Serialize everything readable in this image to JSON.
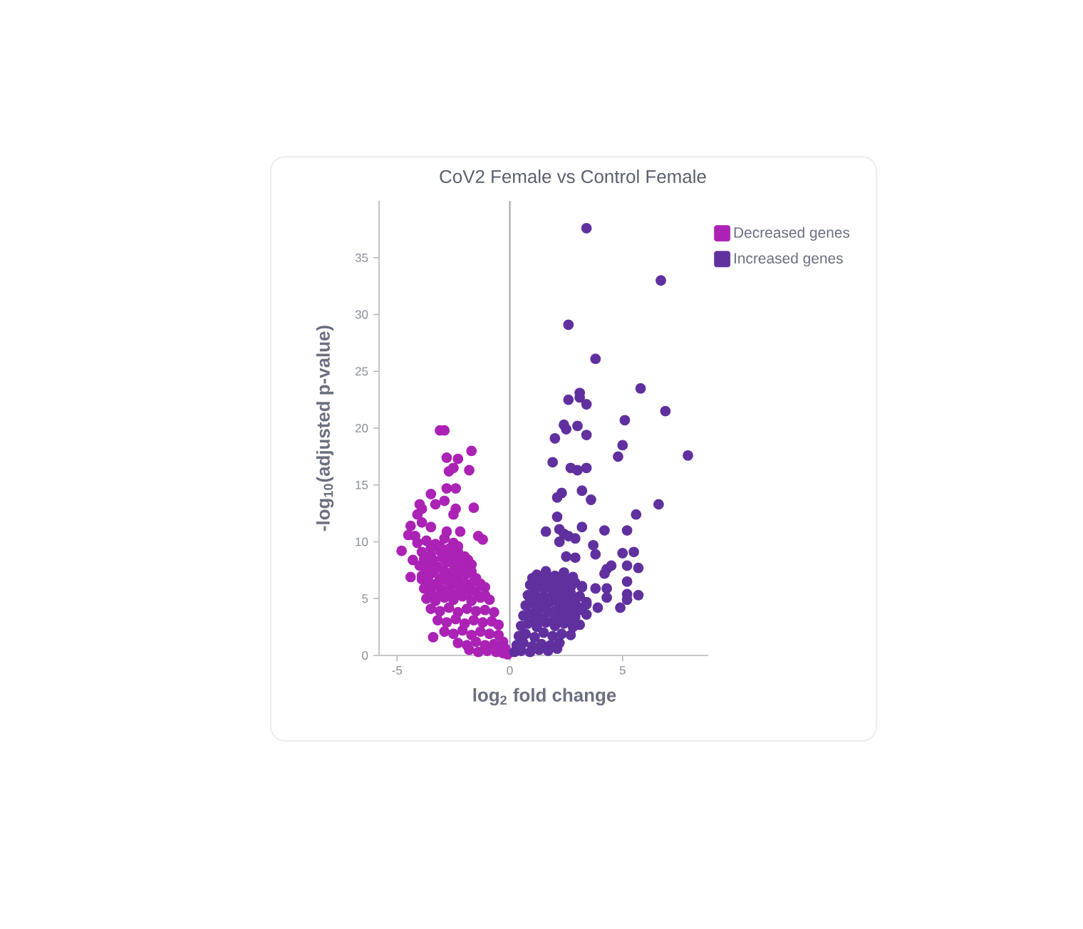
{
  "chart_data": {
    "type": "scatter",
    "title": "CoV2 Female vs Control Female",
    "xlabel": "log$_{2}$ fold change",
    "ylabel": "-log$_{10}$(adjusted p-value)",
    "xlim": [
      -5.8,
      8.8
    ],
    "ylim": [
      0,
      40
    ],
    "xticks": [
      -5,
      0,
      5
    ],
    "yticks": [
      0,
      5,
      10,
      15,
      20,
      25,
      30,
      35
    ],
    "legend": "top right",
    "marker": "circle",
    "ref_lines": [
      {
        "axis": "x",
        "value": 0,
        "color": "#a9acb4"
      }
    ],
    "series": [
      {
        "name": "Decreased genes",
        "color": "#ab22b5",
        "x": [
          -3.1,
          -2.9,
          -1.7,
          -2.8,
          -2.3,
          -2.7,
          -2.5,
          -1.8,
          -2.8,
          -2.4,
          -3.5,
          -2.9,
          -3.3,
          -4.0,
          -3.9,
          -1.6,
          -4.1,
          -2.4,
          -2.5,
          -4.4,
          -3.9,
          -4.5,
          -4.2,
          -3.5,
          -2.8,
          -2.2,
          -1.4,
          -1.2,
          -4.8,
          -4.1,
          -4.3,
          -4.4,
          -3.9,
          -3.4,
          -3.7,
          -3.3,
          -2.9,
          -2.5,
          -3.9,
          -3.5,
          -3.1,
          -2.7,
          -2.3,
          -2.0,
          -4.0,
          -3.6,
          -3.2,
          -2.8,
          -2.4,
          -2.0,
          -1.7,
          -3.9,
          -3.5,
          -3.1,
          -2.7,
          -2.3,
          -1.9,
          -1.5,
          -3.8,
          -3.4,
          -3.0,
          -2.6,
          -2.2,
          -1.8,
          -1.1,
          -3.7,
          -3.3,
          -2.9,
          -2.5,
          -2.1,
          -1.7,
          -1.3,
          -0.9,
          -3.5,
          -3.1,
          -2.7,
          -2.3,
          -1.9,
          -1.5,
          -1.1,
          -0.7,
          -3.2,
          -2.8,
          -2.4,
          -2.0,
          -1.6,
          -1.2,
          -0.8,
          -0.5,
          -2.9,
          -2.5,
          -2.1,
          -1.7,
          -1.3,
          -0.9,
          -0.5,
          -0.3,
          -2.3,
          -1.9,
          -1.5,
          -1.1,
          -0.7,
          -0.4,
          -0.2,
          -1.8,
          -1.4,
          -1.0,
          -0.6,
          -0.3,
          -0.1,
          -3.5,
          -3.1,
          -2.7,
          -2.3,
          -3.8,
          -3.4,
          -3.0,
          -2.6,
          -2.2,
          -1.85,
          -3.7,
          -3.3,
          -2.9,
          -2.5,
          -2.1,
          -1.7,
          -3.6,
          -3.2,
          -2.8,
          -2.4,
          -2.0,
          -1.6,
          -1.3,
          -3.5,
          -3.1,
          -2.7,
          -2.3,
          -1.9,
          -1.5,
          -1.1
        ],
        "values": [
          19.8,
          19.8,
          18.0,
          17.4,
          17.3,
          16.2,
          16.5,
          16.3,
          14.7,
          14.7,
          14.2,
          13.6,
          13.3,
          13.3,
          12.9,
          13.0,
          12.4,
          12.9,
          12.4,
          11.4,
          11.7,
          10.6,
          10.5,
          11.3,
          10.9,
          10.9,
          10.5,
          10.2,
          9.2,
          9.9,
          8.4,
          6.9,
          6.7,
          1.6,
          10.1,
          9.8,
          10.3,
          9.9,
          9.1,
          8.8,
          9.2,
          8.9,
          9.1,
          8.7,
          7.9,
          8.1,
          7.8,
          8.2,
          7.9,
          7.7,
          8.0,
          7.0,
          7.2,
          6.8,
          7.1,
          6.9,
          7.2,
          6.8,
          5.9,
          6.1,
          5.8,
          6.2,
          5.9,
          6.1,
          6.0,
          5.0,
          4.8,
          5.1,
          4.9,
          5.2,
          4.8,
          5.1,
          4.9,
          4.1,
          3.9,
          4.2,
          3.8,
          4.1,
          3.9,
          4.0,
          3.8,
          3.1,
          2.9,
          3.2,
          2.8,
          3.1,
          2.9,
          3.0,
          2.7,
          2.1,
          1.9,
          2.2,
          1.8,
          2.1,
          1.9,
          1.8,
          1.2,
          1.1,
          0.9,
          1.2,
          0.9,
          1.0,
          0.8,
          0.6,
          0.5,
          0.3,
          0.4,
          0.3,
          0.2,
          0.1,
          9.5,
          9.6,
          9.4,
          9.6,
          8.5,
          8.4,
          8.6,
          8.5,
          8.4,
          8.4,
          7.5,
          7.6,
          7.4,
          7.5,
          7.6,
          7.4,
          6.5,
          6.4,
          6.6,
          6.5,
          6.4,
          6.5,
          6.3,
          5.5,
          5.4,
          5.6,
          5.5,
          5.4,
          5.6,
          5.3
        ]
      },
      {
        "name": "Increased genes",
        "color": "#60309f",
        "x": [
          3.4,
          6.7,
          2.6,
          3.8,
          5.8,
          6.9,
          3.1,
          3.1,
          2.6,
          3.4,
          5.1,
          2.4,
          2.5,
          3.0,
          2.0,
          3.4,
          5.0,
          4.8,
          7.9,
          1.9,
          2.7,
          3.0,
          3.4,
          2.3,
          2.1,
          3.2,
          3.6,
          6.6,
          5.6,
          2.1,
          3.2,
          2.2,
          1.6,
          2.4,
          2.6,
          2.9,
          2.2,
          4.2,
          5.2,
          3.7,
          3.8,
          5.0,
          5.5,
          2.5,
          2.9,
          5.2,
          5.7,
          4.3,
          4.2,
          4.5,
          3.2,
          3.8,
          4.3,
          4.3,
          5.2,
          5.2,
          5.7,
          5.2,
          4.9,
          3.4,
          3.9,
          1.2,
          1.6,
          2.0,
          2.4,
          2.8,
          0.9,
          1.3,
          1.7,
          2.1,
          2.5,
          2.9,
          3.2,
          0.8,
          1.1,
          1.5,
          1.9,
          2.3,
          2.7,
          3.1,
          0.7,
          1.0,
          1.4,
          1.8,
          2.2,
          2.6,
          3.0,
          3.4,
          0.6,
          0.9,
          1.3,
          1.7,
          2.1,
          2.5,
          2.9,
          3.4,
          0.5,
          0.8,
          1.2,
          1.6,
          2.0,
          2.4,
          2.8,
          3.1,
          0.4,
          0.7,
          1.1,
          1.5,
          1.9,
          2.3,
          2.7,
          0.3,
          0.6,
          1.0,
          1.4,
          1.8,
          2.2,
          0.2,
          0.5,
          0.9,
          1.3,
          1.7,
          2.1,
          1.0,
          1.4,
          1.8,
          2.2,
          2.6,
          1.1,
          1.5,
          1.9,
          2.3,
          2.7,
          0.9,
          1.3,
          1.7,
          2.1,
          2.5,
          2.9,
          1.2,
          1.6,
          2.0,
          2.4,
          2.8,
          3.2,
          1.1,
          1.5,
          1.9,
          2.3,
          2.7
        ],
        "values": [
          37.6,
          33.0,
          29.1,
          26.1,
          23.5,
          21.5,
          23.1,
          22.7,
          22.5,
          22.1,
          20.7,
          20.3,
          19.9,
          20.2,
          19.1,
          19.4,
          18.5,
          17.5,
          17.6,
          17.0,
          16.5,
          16.3,
          16.5,
          14.3,
          13.9,
          14.5,
          13.7,
          13.3,
          12.4,
          12.2,
          11.3,
          11.1,
          10.9,
          10.7,
          10.5,
          10.3,
          10.0,
          11.0,
          11.0,
          9.7,
          8.9,
          9.0,
          9.1,
          8.7,
          8.6,
          7.9,
          7.7,
          7.6,
          7.2,
          7.9,
          6.1,
          5.9,
          5.9,
          5.1,
          6.5,
          5.4,
          5.3,
          4.9,
          4.2,
          4.7,
          4.2,
          7.1,
          7.4,
          7.0,
          7.3,
          6.9,
          6.2,
          6.4,
          6.1,
          6.5,
          6.2,
          6.4,
          6.0,
          5.3,
          5.5,
          5.2,
          5.6,
          5.3,
          5.5,
          5.2,
          4.4,
          4.6,
          4.3,
          4.7,
          4.4,
          4.6,
          4.3,
          4.5,
          3.5,
          3.7,
          3.4,
          3.8,
          3.5,
          3.7,
          3.4,
          3.6,
          2.6,
          2.8,
          2.5,
          2.9,
          2.6,
          2.8,
          2.5,
          2.7,
          1.7,
          1.9,
          1.6,
          2.0,
          1.7,
          1.9,
          1.8,
          0.9,
          1.1,
          0.8,
          1.0,
          0.9,
          1.1,
          0.3,
          0.4,
          0.3,
          0.5,
          0.4,
          0.6,
          6.8,
          6.7,
          6.8,
          6.7,
          6.6,
          5.9,
          5.9,
          5.9,
          5.8,
          6.0,
          4.9,
          5.0,
          4.9,
          5.0,
          4.9,
          4.9,
          4.0,
          4.1,
          3.9,
          4.1,
          3.9,
          4.0,
          3.2,
          3.1,
          3.0,
          3.2,
          3.1
        ]
      }
    ]
  }
}
